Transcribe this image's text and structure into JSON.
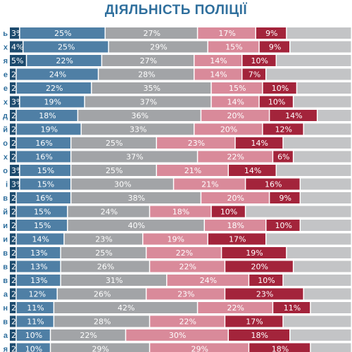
{
  "chart_data": {
    "type": "bar",
    "orientation": "horizontal",
    "stacked": true,
    "title": "ДІЯЛЬНІСТЬ ПОЛІЦІЇ",
    "row_label_endings": [
      "ь",
      "х",
      "я",
      "е",
      "е",
      "х",
      "д",
      "й",
      "о",
      "х",
      "о",
      "і",
      "в",
      "й",
      "и",
      "и",
      "в",
      "в",
      "в",
      "а",
      "н",
      "в",
      "а",
      "я"
    ],
    "series_colors": [
      "#1d4b6e",
      "#4f7fa5",
      "#a2a4a7",
      "#d98a9a",
      "#a3243b",
      "#c3c4c6"
    ],
    "values": [
      [
        3,
        25,
        27,
        17,
        9,
        19
      ],
      [
        4,
        25,
        29,
        15,
        9,
        18
      ],
      [
        5,
        22,
        27,
        14,
        10,
        22
      ],
      [
        2,
        24,
        28,
        14,
        7,
        25
      ],
      [
        2,
        22,
        35,
        15,
        10,
        16
      ],
      [
        3,
        19,
        37,
        14,
        10,
        17
      ],
      [
        2,
        18,
        36,
        20,
        14,
        10
      ],
      [
        2,
        19,
        33,
        20,
        12,
        14
      ],
      [
        2,
        16,
        25,
        23,
        14,
        20
      ],
      [
        2,
        16,
        37,
        22,
        6,
        17
      ],
      [
        3,
        15,
        25,
        21,
        14,
        22
      ],
      [
        3,
        15,
        30,
        21,
        16,
        15
      ],
      [
        2,
        16,
        38,
        20,
        9,
        15
      ],
      [
        2,
        15,
        24,
        18,
        10,
        31
      ],
      [
        2,
        15,
        40,
        18,
        10,
        15
      ],
      [
        2,
        14,
        23,
        19,
        17,
        25
      ],
      [
        2,
        13,
        25,
        22,
        19,
        19
      ],
      [
        2,
        13,
        26,
        22,
        20,
        17
      ],
      [
        2,
        13,
        31,
        24,
        10,
        20
      ],
      [
        2,
        12,
        26,
        23,
        23,
        14
      ],
      [
        2,
        11,
        42,
        22,
        11,
        12
      ],
      [
        2,
        11,
        28,
        22,
        17,
        20
      ],
      [
        2,
        10,
        22,
        30,
        18,
        18
      ],
      [
        2,
        10,
        29,
        29,
        18,
        12
      ]
    ]
  }
}
